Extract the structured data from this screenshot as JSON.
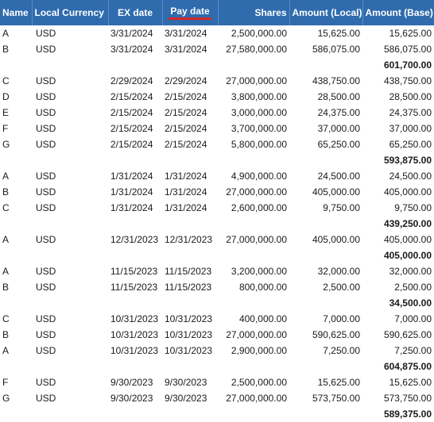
{
  "columns": [
    {
      "key": "name",
      "label": "Name"
    },
    {
      "key": "currency",
      "label": "Local Currency"
    },
    {
      "key": "ex_date",
      "label": "EX date"
    },
    {
      "key": "pay_date",
      "label": "Pay date",
      "sorted": true
    },
    {
      "key": "shares",
      "label": "Shares"
    },
    {
      "key": "amount_local",
      "label": "Amount (Local)"
    },
    {
      "key": "amount_base",
      "label": "Amount (Base)"
    }
  ],
  "groups": [
    {
      "rows": [
        {
          "name": "A",
          "currency": "USD",
          "ex_date": "3/31/2024",
          "pay_date": "3/31/2024",
          "shares": "2,500,000.00",
          "amount_local": "15,625.00",
          "amount_base": "15,625.00"
        },
        {
          "name": "B",
          "currency": "USD",
          "ex_date": "3/31/2024",
          "pay_date": "3/31/2024",
          "shares": "27,580,000.00",
          "amount_local": "586,075.00",
          "amount_base": "586,075.00"
        }
      ],
      "total": "601,700.00"
    },
    {
      "rows": [
        {
          "name": "C",
          "currency": "USD",
          "ex_date": "2/29/2024",
          "pay_date": "2/29/2024",
          "shares": "27,000,000.00",
          "amount_local": "438,750.00",
          "amount_base": "438,750.00"
        },
        {
          "name": "D",
          "currency": "USD",
          "ex_date": "2/15/2024",
          "pay_date": "2/15/2024",
          "shares": "3,800,000.00",
          "amount_local": "28,500.00",
          "amount_base": "28,500.00"
        },
        {
          "name": "E",
          "currency": "USD",
          "ex_date": "2/15/2024",
          "pay_date": "2/15/2024",
          "shares": "3,000,000.00",
          "amount_local": "24,375.00",
          "amount_base": "24,375.00"
        },
        {
          "name": "F",
          "currency": "USD",
          "ex_date": "2/15/2024",
          "pay_date": "2/15/2024",
          "shares": "3,700,000.00",
          "amount_local": "37,000.00",
          "amount_base": "37,000.00"
        },
        {
          "name": "G",
          "currency": "USD",
          "ex_date": "2/15/2024",
          "pay_date": "2/15/2024",
          "shares": "5,800,000.00",
          "amount_local": "65,250.00",
          "amount_base": "65,250.00"
        }
      ],
      "total": "593,875.00"
    },
    {
      "rows": [
        {
          "name": "A",
          "currency": "USD",
          "ex_date": "1/31/2024",
          "pay_date": "1/31/2024",
          "shares": "4,900,000.00",
          "amount_local": "24,500.00",
          "amount_base": "24,500.00"
        },
        {
          "name": "B",
          "currency": "USD",
          "ex_date": "1/31/2024",
          "pay_date": "1/31/2024",
          "shares": "27,000,000.00",
          "amount_local": "405,000.00",
          "amount_base": "405,000.00"
        },
        {
          "name": "C",
          "currency": "USD",
          "ex_date": "1/31/2024",
          "pay_date": "1/31/2024",
          "shares": "2,600,000.00",
          "amount_local": "9,750.00",
          "amount_base": "9,750.00"
        }
      ],
      "total": "439,250.00"
    },
    {
      "rows": [
        {
          "name": "A",
          "currency": "USD",
          "ex_date": "12/31/2023",
          "pay_date": "12/31/2023",
          "shares": "27,000,000.00",
          "amount_local": "405,000.00",
          "amount_base": "405,000.00"
        }
      ],
      "total": "405,000.00"
    },
    {
      "rows": [
        {
          "name": "A",
          "currency": "USD",
          "ex_date": "11/15/2023",
          "pay_date": "11/15/2023",
          "shares": "3,200,000.00",
          "amount_local": "32,000.00",
          "amount_base": "32,000.00"
        },
        {
          "name": "B",
          "currency": "USD",
          "ex_date": "11/15/2023",
          "pay_date": "11/15/2023",
          "shares": "800,000.00",
          "amount_local": "2,500.00",
          "amount_base": "2,500.00"
        }
      ],
      "total": "34,500.00"
    },
    {
      "rows": [
        {
          "name": "C",
          "currency": "USD",
          "ex_date": "10/31/2023",
          "pay_date": "10/31/2023",
          "shares": "400,000.00",
          "amount_local": "7,000.00",
          "amount_base": "7,000.00"
        },
        {
          "name": "B",
          "currency": "USD",
          "ex_date": "10/31/2023",
          "pay_date": "10/31/2023",
          "shares": "27,000,000.00",
          "amount_local": "590,625.00",
          "amount_base": "590,625.00"
        },
        {
          "name": "A",
          "currency": "USD",
          "ex_date": "10/31/2023",
          "pay_date": "10/31/2023",
          "shares": "2,900,000.00",
          "amount_local": "7,250.00",
          "amount_base": "7,250.00"
        }
      ],
      "total": "604,875.00"
    },
    {
      "rows": [
        {
          "name": "F",
          "currency": "USD",
          "ex_date": "9/30/2023",
          "pay_date": "9/30/2023",
          "shares": "2,500,000.00",
          "amount_local": "15,625.00",
          "amount_base": "15,625.00"
        },
        {
          "name": "G",
          "currency": "USD",
          "ex_date": "9/30/2023",
          "pay_date": "9/30/2023",
          "shares": "27,000,000.00",
          "amount_local": "573,750.00",
          "amount_base": "573,750.00"
        }
      ],
      "total": "589,375.00"
    }
  ],
  "colors": {
    "header_bg": "#2f6bad",
    "header_text": "#ffffff",
    "sort_indicator": "#d62828"
  }
}
